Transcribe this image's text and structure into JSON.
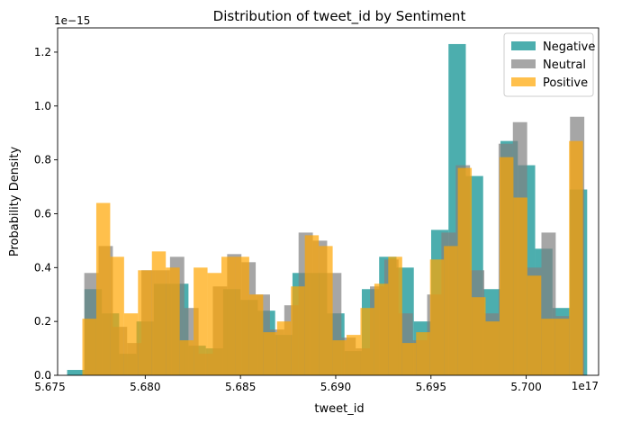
{
  "chart_data": {
    "type": "bar",
    "title": "Distribution of tweet_id by Sentiment",
    "xlabel": "tweet_id",
    "ylabel": "Probability Density",
    "x_multiplier": "1e17",
    "y_multiplier": "1e−15",
    "xlim": [
      5.6754,
      5.7038
    ],
    "ylim": [
      0.0,
      1.29
    ],
    "x_ticks": [
      5.675,
      5.68,
      5.685,
      5.69,
      5.695,
      5.7
    ],
    "x_tick_labels": [
      "5.675",
      "5.680",
      "5.685",
      "5.690",
      "5.695",
      "5.700"
    ],
    "y_ticks": [
      0.0,
      0.2,
      0.4,
      0.6,
      0.8,
      1.0,
      1.2
    ],
    "y_tick_labels": [
      "0.0",
      "0.2",
      "0.4",
      "0.6",
      "0.8",
      "1.0",
      "1.2"
    ],
    "grid": false,
    "legend_position": "top-right",
    "series": [
      {
        "name": "Negative",
        "color": "#008B8B",
        "opacity": 0.7,
        "edges": [
          5.6759,
          5.67681,
          5.67772,
          5.67863,
          5.67954,
          5.68045,
          5.68136,
          5.68227,
          5.68318,
          5.68409,
          5.685,
          5.68591,
          5.68682,
          5.68773,
          5.68864,
          5.68955,
          5.69046,
          5.69137,
          5.69228,
          5.69319,
          5.6941,
          5.69501,
          5.69592,
          5.69683,
          5.69774,
          5.69865,
          5.69956,
          5.70047,
          5.70138,
          5.70229,
          5.7032
        ],
        "values": [
          0.02,
          0.32,
          0.23,
          0.08,
          0.2,
          0.34,
          0.34,
          0.11,
          0.1,
          0.32,
          0.28,
          0.24,
          0.15,
          0.38,
          0.38,
          0.23,
          0.09,
          0.32,
          0.44,
          0.4,
          0.2,
          0.54,
          1.23,
          0.74,
          0.32,
          0.87,
          0.78,
          0.47,
          0.25,
          0.69
        ]
      },
      {
        "name": "Neutral",
        "color": "#808080",
        "opacity": 0.7,
        "edges": [
          5.6768,
          5.67755,
          5.6783,
          5.67905,
          5.6798,
          5.68055,
          5.6813,
          5.68205,
          5.6828,
          5.68355,
          5.6843,
          5.68505,
          5.6858,
          5.68655,
          5.6873,
          5.68805,
          5.6888,
          5.68955,
          5.6903,
          5.69105,
          5.6918,
          5.69255,
          5.6933,
          5.69405,
          5.6948,
          5.69555,
          5.6963,
          5.69705,
          5.6978,
          5.69855,
          5.6993,
          5.70005,
          5.7008,
          5.70155,
          5.7023,
          5.70305
        ],
        "values": [
          0.38,
          0.48,
          0.18,
          0.12,
          0.39,
          0.39,
          0.44,
          0.25,
          0.08,
          0.33,
          0.45,
          0.42,
          0.3,
          0.17,
          0.26,
          0.53,
          0.5,
          0.38,
          0.14,
          0.1,
          0.33,
          0.43,
          0.23,
          0.13,
          0.3,
          0.53,
          0.78,
          0.39,
          0.23,
          0.86,
          0.94,
          0.4,
          0.53,
          0.22,
          0.96
        ]
      },
      {
        "name": "Positive",
        "color": "#FFA500",
        "opacity": 0.7,
        "edges": [
          5.6767,
          5.67743,
          5.67816,
          5.67889,
          5.67962,
          5.68035,
          5.68108,
          5.68181,
          5.68254,
          5.68327,
          5.684,
          5.68473,
          5.68546,
          5.68619,
          5.68692,
          5.68765,
          5.68838,
          5.68911,
          5.68984,
          5.69057,
          5.6913,
          5.69203,
          5.69276,
          5.69349,
          5.69422,
          5.69495,
          5.69568,
          5.69641,
          5.69714,
          5.69787,
          5.6986,
          5.69933,
          5.70006,
          5.70079,
          5.70152,
          5.70225,
          5.70298
        ],
        "values": [
          0.21,
          0.64,
          0.44,
          0.23,
          0.39,
          0.46,
          0.4,
          0.13,
          0.4,
          0.38,
          0.44,
          0.44,
          0.3,
          0.16,
          0.2,
          0.33,
          0.52,
          0.48,
          0.13,
          0.15,
          0.25,
          0.34,
          0.44,
          0.12,
          0.16,
          0.43,
          0.48,
          0.77,
          0.29,
          0.2,
          0.81,
          0.66,
          0.37,
          0.21,
          0.21,
          0.87
        ]
      }
    ]
  }
}
